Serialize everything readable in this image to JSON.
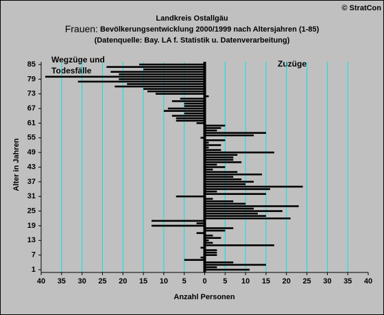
{
  "chart_data": {
    "type": "bar",
    "orientation": "horizontal",
    "copyright": "© StratCon",
    "title": "Landkreis Ostallgäu",
    "subtitle": [
      "Frauen:",
      "Bevölkerungsentwicklung 2000/1999  nach Altersjahren (1-85)"
    ],
    "source": "(Datenquelle: Bay. LA f. Statistik u. Datenverarbeitung)",
    "annotations": [
      {
        "text": "Wegzüge und",
        "color": "#ff0000"
      },
      {
        "text": "Todesfälle",
        "color": "#ff0000"
      },
      {
        "text": "Zuzüge",
        "color": "#008000"
      }
    ],
    "y_label": "Alter in Jahren",
    "x_label": "Anzahl Personen",
    "categories": [
      1,
      null,
      null,
      null,
      null,
      null,
      7,
      null,
      null,
      null,
      null,
      null,
      13,
      null,
      null,
      null,
      null,
      null,
      19,
      null,
      null,
      null,
      null,
      null,
      25,
      null,
      null,
      null,
      null,
      null,
      31,
      null,
      null,
      null,
      null,
      null,
      37,
      null,
      null,
      null,
      null,
      null,
      43,
      null,
      null,
      null,
      null,
      null,
      49,
      null,
      null,
      null,
      null,
      null,
      55,
      null,
      null,
      null,
      null,
      null,
      61,
      null,
      null,
      null,
      null,
      null,
      67,
      null,
      null,
      null,
      null,
      null,
      73,
      null,
      null,
      null,
      null,
      null,
      79,
      null,
      null,
      null,
      null,
      null,
      85
    ],
    "values": [
      11,
      3,
      15,
      7,
      -5,
      -1,
      3,
      3,
      3,
      -1,
      17,
      2,
      1,
      4,
      2,
      -2,
      5,
      7,
      -13,
      -2,
      -13,
      21,
      15,
      13,
      19,
      12,
      23,
      10,
      7,
      2,
      -7,
      15,
      3,
      16,
      24,
      10,
      12,
      9,
      7,
      14,
      8,
      2,
      5,
      3,
      9,
      7,
      7,
      8,
      17,
      4,
      1,
      4,
      1,
      5,
      -1,
      12,
      15,
      3,
      4,
      5,
      -2,
      -7,
      -7,
      -8,
      -5,
      -10,
      -9,
      -5,
      -5,
      -8,
      -6,
      1,
      -12,
      -14,
      -15,
      -22,
      -19,
      -31,
      -21,
      -39,
      -21,
      -23,
      -15,
      -24,
      -16
    ],
    "color": "#000000",
    "xlim": [
      -40,
      40
    ],
    "xticks": [
      {
        "value": -40,
        "label": "40"
      },
      {
        "value": -35,
        "label": "35"
      },
      {
        "value": -30,
        "label": "30"
      },
      {
        "value": -25,
        "label": "25"
      },
      {
        "value": -20,
        "label": "20"
      },
      {
        "value": -15,
        "label": "15"
      },
      {
        "value": -10,
        "label": "10"
      },
      {
        "value": -5,
        "label": "5"
      },
      0,
      5,
      10,
      15,
      20,
      25,
      30,
      35,
      40
    ],
    "grid": true,
    "grid_color": "#00e5e5"
  }
}
